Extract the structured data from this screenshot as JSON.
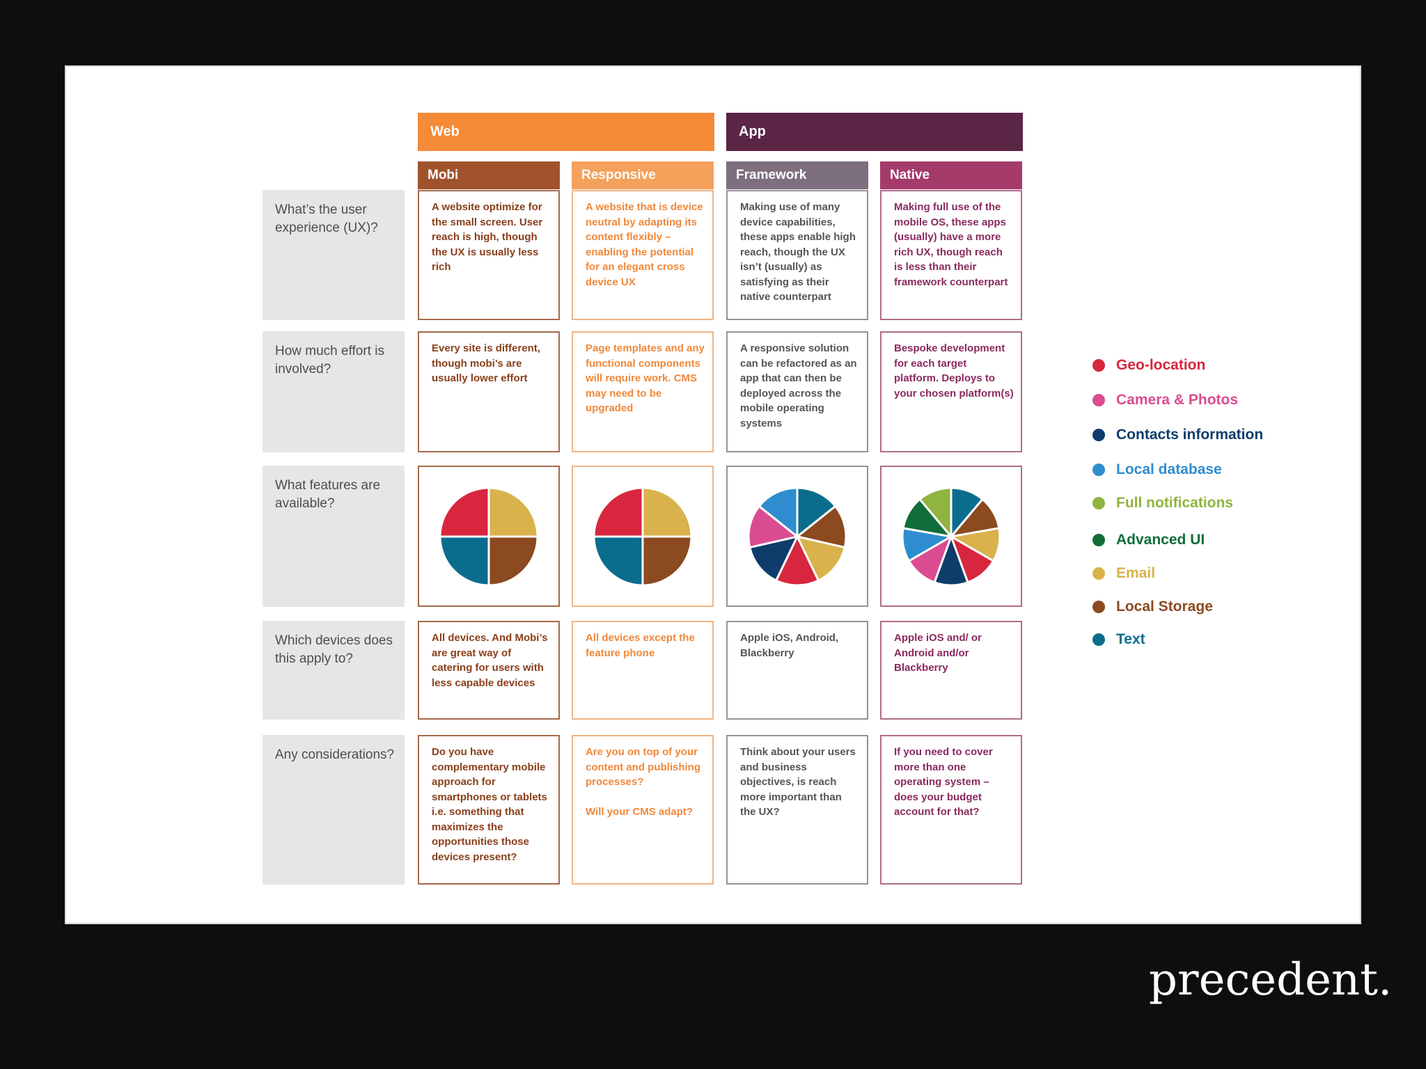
{
  "groups": {
    "web": "Web",
    "app": "App"
  },
  "columns": {
    "mobi": "Mobi",
    "responsive": "Responsive",
    "framework": "Framework",
    "native": "Native"
  },
  "colors": {
    "web": "#f58a38",
    "app": "#5b2546",
    "mobi": "#a0522d",
    "responsive": "#f3a15b",
    "framework": "#7d6f7d",
    "native": "#a53b6b"
  },
  "rows": [
    {
      "question": "What’s the user experience (UX)?",
      "mobi": "A website optimize for the small screen. User reach is high, though the UX is usually less rich",
      "responsive": "A website that is device neutral by adapting its content flexibly – enabling the potential for an elegant cross device UX",
      "framework": "Making use of many device capabilities, these apps enable high reach, though the UX isn’t (usually) as satisfying as their native counterpart",
      "native": "Making full use of the mobile OS, these apps (usually) have a more rich UX, though reach is less than their framework counterpart"
    },
    {
      "question": "How much effort is involved?",
      "mobi": "Every site is different, though mobi’s are usually lower effort",
      "responsive": "Page templates and any functional components will require work. CMS may need to be upgraded",
      "framework": "A responsive solution can be refactored as an app that can then be deployed across the mobile operating systems",
      "native": "Bespoke development for each target platform. Deploys to your chosen platform(s)"
    },
    {
      "question": "What features are available?"
    },
    {
      "question": "Which devices does this apply to?",
      "mobi": "All devices. And Mobi’s are great way of catering for users with less capable devices",
      "responsive": "All devices except the feature phone",
      "framework": "Apple iOS, Android, Blackberry",
      "native": "Apple iOS and/ or Android and/or Blackberry"
    },
    {
      "question": "Any considerations?",
      "mobi": "Do you have complementary mobile approach for smartphones or tablets i.e. something that maximizes the opportunities those devices present?",
      "responsive": "Are you on top of your content and publishing processes?\n\nWill your CMS adapt?",
      "framework": "Think about your users and business objectives, is reach more important than the UX?",
      "native": "If you need to cover more than one operating system – does your budget account for that?"
    }
  ],
  "legend": [
    {
      "label": "Geo-location",
      "color": "#d7263d"
    },
    {
      "label": "Camera & Photos",
      "color": "#db4b91"
    },
    {
      "label": "Contacts information",
      "color": "#0e3d6b"
    },
    {
      "label": "Local database",
      "color": "#2f8dcf"
    },
    {
      "label": "Full notifications",
      "color": "#8fb43f"
    },
    {
      "label": "Advanced UI",
      "color": "#0f6e3a"
    },
    {
      "label": "Email",
      "color": "#d9b24c"
    },
    {
      "label": "Local Storage",
      "color": "#8b4a1f"
    },
    {
      "label": "Text",
      "color": "#0b6d8e"
    }
  ],
  "feature_pies": {
    "mobi": [
      "Email",
      "Local Storage",
      "Text",
      "Geo-location"
    ],
    "responsive": [
      "Email",
      "Local Storage",
      "Text",
      "Geo-location"
    ],
    "framework": [
      "Text",
      "Local Storage",
      "Email",
      "Geo-location",
      "Contacts information",
      "Camera & Photos",
      "Local database"
    ],
    "native": [
      "Text",
      "Local Storage",
      "Email",
      "Geo-location",
      "Contacts information",
      "Camera & Photos",
      "Local database",
      "Advanced UI",
      "Full notifications"
    ]
  },
  "brand": "precedent."
}
